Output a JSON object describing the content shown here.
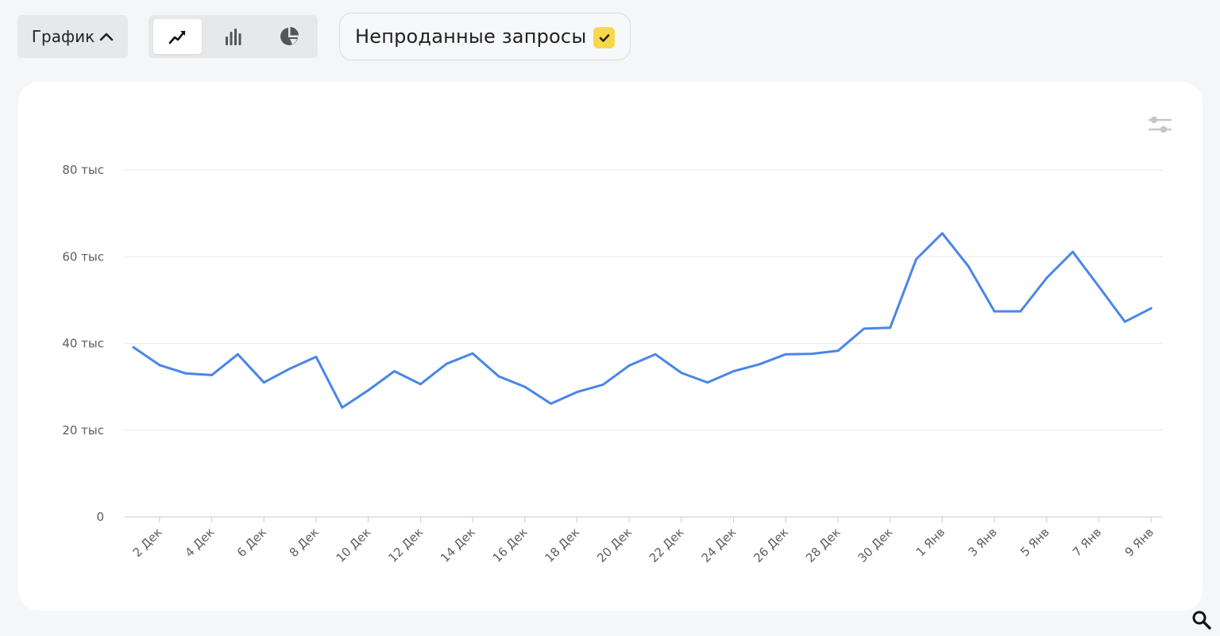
{
  "toolbar": {
    "graph_toggle_label": "График",
    "view_modes": [
      {
        "icon": "line-chart-icon",
        "active": true
      },
      {
        "icon": "bar-chart-icon",
        "active": false
      },
      {
        "icon": "pie-chart-icon",
        "active": false
      }
    ],
    "filter_chip": {
      "label": "Непроданные запросы",
      "checked": true
    }
  },
  "colors": {
    "line": "#4a86e8",
    "check_bg": "#f7d84a",
    "card_bg": "#ffffff",
    "page_bg": "#f5f6f8"
  },
  "chart_data": {
    "type": "line",
    "title": "",
    "xlabel": "",
    "ylabel": "",
    "ylim": [
      0,
      80000
    ],
    "y_ticks": [
      0,
      20000,
      40000,
      60000,
      80000
    ],
    "y_tick_labels": [
      "0",
      "20 тыс",
      "40 тыс",
      "60 тыс",
      "80 тыс"
    ],
    "grid": true,
    "x": [
      "1 Дек",
      "2 Дек",
      "3 Дек",
      "4 Дек",
      "5 Дек",
      "6 Дек",
      "7 Дек",
      "8 Дек",
      "9 Дек",
      "10 Дек",
      "11 Дек",
      "12 Дек",
      "13 Дек",
      "14 Дек",
      "15 Дек",
      "16 Дек",
      "17 Дек",
      "18 Дек",
      "19 Дек",
      "20 Дек",
      "21 Дек",
      "22 Дек",
      "23 Дек",
      "24 Дек",
      "25 Дек",
      "26 Дек",
      "27 Дек",
      "28 Дек",
      "29 Дек",
      "30 Дек",
      "31 Дек",
      "1 Янв",
      "2 Янв",
      "3 Янв",
      "4 Янв",
      "5 Янв",
      "6 Янв",
      "7 Янв",
      "8 Янв",
      "9 Янв"
    ],
    "x_tick_labels": [
      "2 Дек",
      "4 Дек",
      "6 Дек",
      "8 Дек",
      "10 Дек",
      "12 Дек",
      "14 Дек",
      "16 Дек",
      "18 Дек",
      "20 Дек",
      "22 Дек",
      "24 Дек",
      "26 Дек",
      "28 Дек",
      "30 Дек",
      "1 Янв",
      "3 Янв",
      "5 Янв",
      "7 Янв",
      "9 Янв"
    ],
    "series": [
      {
        "values": [
          39100,
          35000,
          33100,
          32700,
          37500,
          31000,
          34200,
          36900,
          25200,
          29200,
          33600,
          30600,
          35300,
          37700,
          32400,
          30000,
          26100,
          28800,
          30500,
          34900,
          37500,
          33200,
          31000,
          33600,
          35200,
          37500,
          37600,
          38300,
          43400,
          43600,
          59400,
          65400,
          57800,
          47400,
          47400,
          55100,
          61100,
          53100,
          45000,
          48100
        ]
      }
    ]
  }
}
